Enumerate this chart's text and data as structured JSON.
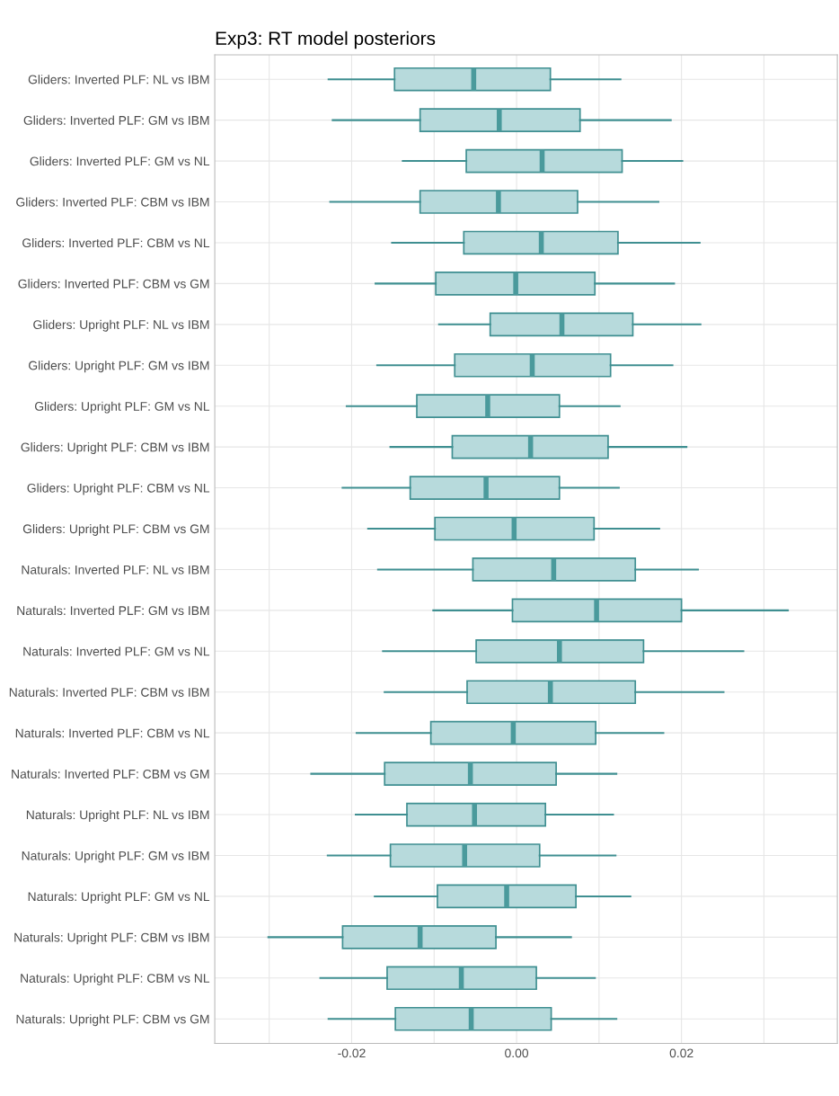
{
  "chart_data": {
    "type": "box",
    "title": "Exp3: RT model posteriors",
    "categories": [
      "Gliders: Inverted PLF: NL vs IBM",
      "Gliders: Inverted PLF: GM vs IBM",
      "Gliders: Inverted PLF: GM vs NL",
      "Gliders: Inverted PLF: CBM vs IBM",
      "Gliders: Inverted PLF: CBM vs NL",
      "Gliders: Inverted PLF: CBM vs GM",
      "Gliders: Upright PLF: NL vs IBM",
      "Gliders: Upright PLF: GM vs IBM",
      "Gliders: Upright PLF: GM vs NL",
      "Gliders: Upright PLF: CBM vs IBM",
      "Gliders: Upright PLF: CBM vs NL",
      "Gliders: Upright PLF: CBM vs GM",
      "Naturals: Inverted PLF: NL vs IBM",
      "Naturals: Inverted PLF: GM vs IBM",
      "Naturals: Inverted PLF: GM vs NL",
      "Naturals: Inverted PLF: CBM vs IBM",
      "Naturals: Inverted PLF: CBM vs NL",
      "Naturals: Inverted PLF: CBM vs GM",
      "Naturals: Upright PLF: NL vs IBM",
      "Naturals: Upright PLF: GM vs IBM",
      "Naturals: Upright PLF: GM vs NL",
      "Naturals: Upright PLF: CBM vs IBM",
      "Naturals: Upright PLF: CBM vs NL",
      "Naturals: Upright PLF: CBM vs GM"
    ],
    "orientation": "horizontal",
    "color": "#b7dadc",
    "boxes": [
      {
        "low": -0.0228,
        "q1": -0.0148,
        "median": -0.0052,
        "q3": 0.0041,
        "high": 0.0126
      },
      {
        "low": -0.0223,
        "q1": -0.0117,
        "median": -0.0021,
        "q3": 0.0077,
        "high": 0.0187
      },
      {
        "low": -0.0138,
        "q1": -0.0061,
        "median": 0.0031,
        "q3": 0.0128,
        "high": 0.0201
      },
      {
        "low": -0.0226,
        "q1": -0.0117,
        "median": -0.0022,
        "q3": 0.0074,
        "high": 0.0172
      },
      {
        "low": -0.0151,
        "q1": -0.0064,
        "median": 0.003,
        "q3": 0.0123,
        "high": 0.0222
      },
      {
        "low": -0.0171,
        "q1": -0.0098,
        "median": -0.0001,
        "q3": 0.0095,
        "high": 0.0191
      },
      {
        "low": -0.0094,
        "q1": -0.0032,
        "median": 0.0055,
        "q3": 0.0141,
        "high": 0.0223
      },
      {
        "low": -0.0169,
        "q1": -0.0075,
        "median": 0.0019,
        "q3": 0.0114,
        "high": 0.0189
      },
      {
        "low": -0.0206,
        "q1": -0.0121,
        "median": -0.0035,
        "q3": 0.0052,
        "high": 0.0125
      },
      {
        "low": -0.0153,
        "q1": -0.0078,
        "median": 0.0017,
        "q3": 0.0111,
        "high": 0.0206
      },
      {
        "low": -0.0211,
        "q1": -0.0129,
        "median": -0.0037,
        "q3": 0.0052,
        "high": 0.0124
      },
      {
        "low": -0.018,
        "q1": -0.0099,
        "median": -0.0003,
        "q3": 0.0094,
        "high": 0.0173
      },
      {
        "low": -0.0168,
        "q1": -0.0053,
        "median": 0.0045,
        "q3": 0.0144,
        "high": 0.022
      },
      {
        "low": -0.0101,
        "q1": -0.0005,
        "median": 0.0097,
        "q3": 0.02,
        "high": 0.0329
      },
      {
        "low": -0.0162,
        "q1": -0.0049,
        "median": 0.0052,
        "q3": 0.0154,
        "high": 0.0275
      },
      {
        "low": -0.016,
        "q1": -0.006,
        "median": 0.0041,
        "q3": 0.0144,
        "high": 0.0251
      },
      {
        "low": -0.0194,
        "q1": -0.0104,
        "median": -0.0004,
        "q3": 0.0096,
        "high": 0.0178
      },
      {
        "low": -0.0249,
        "q1": -0.016,
        "median": -0.0056,
        "q3": 0.0048,
        "high": 0.0121
      },
      {
        "low": -0.0195,
        "q1": -0.0133,
        "median": -0.0051,
        "q3": 0.0035,
        "high": 0.0117
      },
      {
        "low": -0.0229,
        "q1": -0.0153,
        "median": -0.0063,
        "q3": 0.0028,
        "high": 0.012
      },
      {
        "low": -0.0172,
        "q1": -0.0096,
        "median": -0.0012,
        "q3": 0.0072,
        "high": 0.0138
      },
      {
        "low": -0.0301,
        "q1": -0.0211,
        "median": -0.0117,
        "q3": -0.0025,
        "high": 0.0066
      },
      {
        "low": -0.0238,
        "q1": -0.0157,
        "median": -0.0067,
        "q3": 0.0024,
        "high": 0.0095
      },
      {
        "low": -0.0228,
        "q1": -0.0147,
        "median": -0.0055,
        "q3": 0.0042,
        "high": 0.0121
      }
    ],
    "xlim": [
      -0.0366,
      0.0389
    ],
    "xticks": [
      {
        "value": -0.03,
        "label": null
      },
      {
        "value": -0.02,
        "label": "-0.02"
      },
      {
        "value": -0.01,
        "label": null
      },
      {
        "value": 0,
        "label": "0.00"
      },
      {
        "value": 0.01,
        "label": null
      },
      {
        "value": 0.02,
        "label": "0.02"
      },
      {
        "value": 0.03,
        "label": null
      }
    ],
    "grid": true
  }
}
